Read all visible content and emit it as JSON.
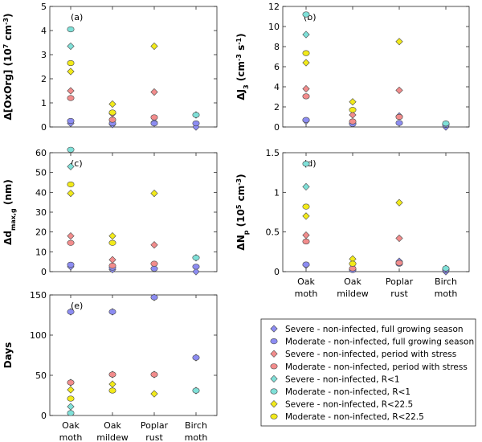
{
  "chart_data": [
    {
      "panel": "(a)",
      "type": "scatter",
      "ylabel": "Δ[OxOrg] (10⁷ cm⁻³)",
      "ylim": [
        0,
        5
      ],
      "yticks": [
        0,
        1,
        2,
        3,
        4,
        5
      ],
      "categories": [
        "Oak moth",
        "Oak mildew",
        "Poplar rust",
        "Birch moth"
      ],
      "show_xticklabels": false,
      "series": [
        {
          "key": "s_full",
          "values": [
            0.15,
            0.1,
            0.2,
            0.0
          ]
        },
        {
          "key": "m_full",
          "values": [
            0.25,
            0.15,
            0.15,
            0.15
          ]
        },
        {
          "key": "s_stress",
          "values": [
            1.5,
            0.55,
            1.45,
            null
          ]
        },
        {
          "key": "m_stress",
          "values": [
            1.2,
            0.3,
            0.4,
            null
          ]
        },
        {
          "key": "s_r1",
          "values": [
            3.35,
            null,
            null,
            0.5
          ]
        },
        {
          "key": "m_r1",
          "values": [
            4.05,
            null,
            null,
            0.5
          ]
        },
        {
          "key": "s_r225",
          "values": [
            2.3,
            0.95,
            3.35,
            null
          ]
        },
        {
          "key": "m_r225",
          "values": [
            2.65,
            0.6,
            null,
            null
          ]
        }
      ]
    },
    {
      "panel": "(b)",
      "type": "scatter",
      "ylabel": "ΔJ₃ (cm⁻³ s⁻¹)",
      "ylim": [
        0,
        12
      ],
      "yticks": [
        0,
        2,
        4,
        6,
        8,
        10,
        12
      ],
      "categories": [
        "Oak moth",
        "Oak mildew",
        "Poplar rust",
        "Birch moth"
      ],
      "show_xticklabels": false,
      "series": [
        {
          "key": "s_full",
          "values": [
            0.6,
            0.4,
            1.1,
            0.0
          ]
        },
        {
          "key": "m_full",
          "values": [
            0.7,
            0.3,
            0.4,
            0.2
          ]
        },
        {
          "key": "s_stress",
          "values": [
            3.8,
            1.2,
            3.65,
            null
          ]
        },
        {
          "key": "m_stress",
          "values": [
            3.05,
            0.55,
            1.0,
            null
          ]
        },
        {
          "key": "s_r1",
          "values": [
            9.2,
            null,
            null,
            0.3
          ]
        },
        {
          "key": "m_r1",
          "values": [
            11.2,
            null,
            null,
            0.35
          ]
        },
        {
          "key": "s_r225",
          "values": [
            6.4,
            2.5,
            8.5,
            null
          ]
        },
        {
          "key": "m_r225",
          "values": [
            7.35,
            1.7,
            null,
            null
          ]
        }
      ]
    },
    {
      "panel": "(c)",
      "type": "scatter",
      "ylabel": "Δd_max,g (nm)",
      "ylim": [
        0,
        60
      ],
      "yticks": [
        0,
        10,
        20,
        30,
        40,
        50,
        60
      ],
      "categories": [
        "Oak moth",
        "Oak mildew",
        "Poplar rust",
        "Birch moth"
      ],
      "show_xticklabels": false,
      "series": [
        {
          "key": "s_full",
          "values": [
            2.5,
            1.0,
            1.5,
            0.0
          ]
        },
        {
          "key": "m_full",
          "values": [
            3.5,
            2.0,
            1.5,
            2.5
          ]
        },
        {
          "key": "s_stress",
          "values": [
            18.0,
            6.0,
            13.5,
            null
          ]
        },
        {
          "key": "m_stress",
          "values": [
            14.5,
            3.0,
            4.0,
            null
          ]
        },
        {
          "key": "s_r1",
          "values": [
            53.0,
            null,
            null,
            7.0
          ]
        },
        {
          "key": "m_r1",
          "values": [
            61.5,
            null,
            null,
            7.0
          ]
        },
        {
          "key": "s_r225",
          "values": [
            39.5,
            18.0,
            39.5,
            null
          ]
        },
        {
          "key": "m_r225",
          "values": [
            44.0,
            14.5,
            null,
            null
          ]
        }
      ]
    },
    {
      "panel": "(d)",
      "type": "scatter",
      "ylabel": "ΔN_p (10⁵ cm⁻³)",
      "ylim": [
        0,
        1.5
      ],
      "yticks": [
        0,
        0.5,
        1,
        1.5
      ],
      "categories": [
        "Oak moth",
        "Oak mildew",
        "Poplar rust",
        "Birch moth"
      ],
      "show_xticklabels": true,
      "series": [
        {
          "key": "s_full",
          "values": [
            0.08,
            0.03,
            0.13,
            0.0
          ]
        },
        {
          "key": "m_full",
          "values": [
            0.09,
            0.02,
            0.1,
            0.02
          ]
        },
        {
          "key": "s_stress",
          "values": [
            0.46,
            0.1,
            0.42,
            null
          ]
        },
        {
          "key": "m_stress",
          "values": [
            0.38,
            0.04,
            0.11,
            null
          ]
        },
        {
          "key": "s_r1",
          "values": [
            1.07,
            null,
            null,
            0.04
          ]
        },
        {
          "key": "m_r1",
          "values": [
            1.36,
            null,
            null,
            0.04
          ]
        },
        {
          "key": "s_r225",
          "values": [
            0.7,
            0.16,
            0.87,
            null
          ]
        },
        {
          "key": "m_r225",
          "values": [
            0.82,
            0.1,
            null,
            null
          ]
        }
      ]
    },
    {
      "panel": "(e)",
      "type": "scatter",
      "ylabel": "Days",
      "ylim": [
        0,
        150
      ],
      "yticks": [
        0,
        50,
        100,
        150
      ],
      "categories": [
        "Oak moth",
        "Oak mildew",
        "Poplar rust",
        "Birch moth"
      ],
      "show_xticklabels": true,
      "series": [
        {
          "key": "s_full",
          "values": [
            129,
            129,
            147,
            72
          ]
        },
        {
          "key": "m_full",
          "values": [
            129,
            129,
            147,
            72
          ]
        },
        {
          "key": "s_stress",
          "values": [
            41,
            51,
            51,
            null
          ]
        },
        {
          "key": "m_stress",
          "values": [
            41,
            51,
            51,
            null
          ]
        },
        {
          "key": "s_r1",
          "values": [
            11,
            null,
            null,
            31
          ]
        },
        {
          "key": "m_r1",
          "values": [
            3,
            null,
            null,
            31
          ]
        },
        {
          "key": "s_r225",
          "values": [
            32,
            39,
            27,
            null
          ]
        },
        {
          "key": "m_r225",
          "values": [
            21,
            31,
            null,
            null
          ]
        }
      ]
    }
  ],
  "legend": {
    "entries": [
      {
        "key": "s_full",
        "marker": "diamond",
        "color": "#8c8cf2",
        "label": "Severe - non-infected, full growing season"
      },
      {
        "key": "m_full",
        "marker": "circle",
        "color": "#8c8cf2",
        "label": "Moderate - non-infected, full growing season"
      },
      {
        "key": "s_stress",
        "marker": "diamond",
        "color": "#f28c8c",
        "label": "Severe - non-infected, period with stress"
      },
      {
        "key": "m_stress",
        "marker": "circle",
        "color": "#f28c8c",
        "label": "Moderate - non-infected, period with stress"
      },
      {
        "key": "s_r1",
        "marker": "diamond",
        "color": "#7fe0d8",
        "label": "Severe - non-infected, R<1"
      },
      {
        "key": "m_r1",
        "marker": "circle",
        "color": "#7fe0d8",
        "label": "Moderate - non-infected, R<1"
      },
      {
        "key": "s_r225",
        "marker": "diamond",
        "color": "#f2ea1a",
        "label": "Severe - non-infected, R<22.5"
      },
      {
        "key": "m_r225",
        "marker": "circle",
        "color": "#f2ea1a",
        "label": "Moderate - non-infected, R<22.5"
      }
    ]
  },
  "xtick_labels": [
    [
      "Oak",
      "moth"
    ],
    [
      "Oak",
      "mildew"
    ],
    [
      "Poplar",
      "rust"
    ],
    [
      "Birch",
      "moth"
    ]
  ]
}
